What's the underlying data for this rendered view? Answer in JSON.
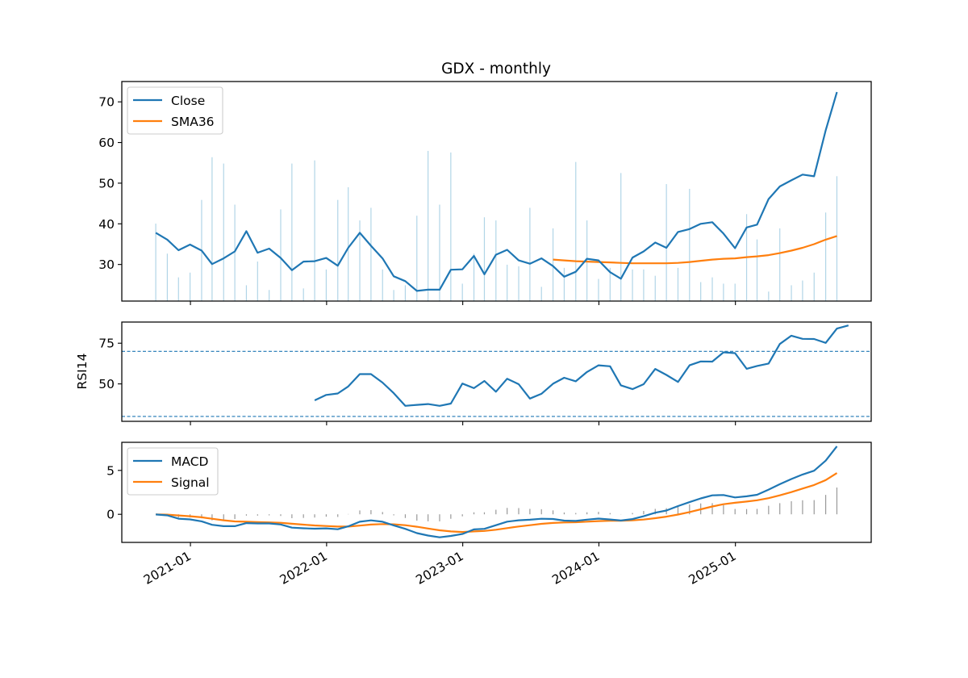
{
  "title": "GDX - monthly",
  "colors": {
    "close": "#1f77b4",
    "sma": "#ff7f0e",
    "volume": "#9ecae1",
    "macd_hist": "#999999",
    "ref_line": "#1f77b4"
  },
  "chart_data": [
    {
      "panel": "price",
      "type": "line",
      "title": "GDX - monthly",
      "xlabel": "",
      "ylabel": "",
      "xlim": [
        "2020-07-01",
        "2025-12-31"
      ],
      "ylim": [
        21,
        75
      ],
      "yticks": [
        30,
        40,
        50,
        60,
        70
      ],
      "legend": "top-left",
      "grid": false,
      "x": [
        "2020-09-30",
        "2020-10-31",
        "2020-11-30",
        "2020-12-31",
        "2021-01-31",
        "2021-02-28",
        "2021-03-31",
        "2021-04-30",
        "2021-05-31",
        "2021-06-30",
        "2021-07-31",
        "2021-08-31",
        "2021-09-30",
        "2021-10-31",
        "2021-11-30",
        "2021-12-31",
        "2022-01-31",
        "2022-02-28",
        "2022-03-31",
        "2022-04-30",
        "2022-05-31",
        "2022-06-30",
        "2022-07-31",
        "2022-08-31",
        "2022-09-30",
        "2022-10-31",
        "2022-11-30",
        "2022-12-31",
        "2023-01-31",
        "2023-02-28",
        "2023-03-31",
        "2023-04-30",
        "2023-05-31",
        "2023-06-30",
        "2023-07-31",
        "2023-08-31",
        "2023-09-30",
        "2023-10-31",
        "2023-11-30",
        "2023-12-31",
        "2024-01-31",
        "2024-02-29",
        "2024-03-31",
        "2024-04-30",
        "2024-05-31",
        "2024-06-30",
        "2024-07-31",
        "2024-08-31",
        "2024-09-30",
        "2024-10-31",
        "2024-11-30",
        "2024-12-31",
        "2025-01-31",
        "2025-02-28",
        "2025-03-31",
        "2025-04-30",
        "2025-05-31",
        "2025-06-30",
        "2025-07-31",
        "2025-08-31",
        "2025-09-30",
        "2025-10-31"
      ],
      "series": [
        {
          "name": "Close",
          "values": [
            37.8,
            36.1,
            33.5,
            34.9,
            33.4,
            30.1,
            31.5,
            33.2,
            38.2,
            32.9,
            33.9,
            31.6,
            28.6,
            30.7,
            30.8,
            31.6,
            29.7,
            34.1,
            37.8,
            34.6,
            31.5,
            27.1,
            25.9,
            23.5,
            23.8,
            23.8,
            28.7,
            28.8,
            32.1,
            27.6,
            32.4,
            33.6,
            31.0,
            30.2,
            31.5,
            29.6,
            27.0,
            28.2,
            31.4,
            31.0,
            28.1,
            26.5,
            31.7,
            33.2,
            35.4,
            34.1,
            38.0,
            38.7,
            40.0,
            40.4,
            37.6,
            34.0,
            39.1,
            39.8,
            46.1,
            49.2,
            50.7,
            52.1,
            51.7,
            63.0,
            72.4,
            null
          ]
        },
        {
          "name": "SMA36",
          "values": [
            null,
            null,
            null,
            null,
            null,
            null,
            null,
            null,
            null,
            null,
            null,
            null,
            null,
            null,
            null,
            null,
            null,
            null,
            null,
            null,
            null,
            null,
            null,
            null,
            null,
            null,
            null,
            null,
            null,
            null,
            null,
            null,
            null,
            null,
            null,
            31.2,
            31.0,
            30.8,
            30.7,
            30.6,
            30.5,
            30.4,
            30.3,
            30.3,
            30.3,
            30.3,
            30.4,
            30.6,
            30.9,
            31.2,
            31.4,
            31.5,
            31.8,
            32.0,
            32.3,
            32.8,
            33.4,
            34.1,
            35.0,
            36.1,
            37.0,
            null
          ]
        }
      ],
      "bars": {
        "name": "Volume",
        "values": [
          0.49,
          0.3,
          0.15,
          0.18,
          0.64,
          0.91,
          0.87,
          0.61,
          0.1,
          0.25,
          0.07,
          0.58,
          0.87,
          0.08,
          0.89,
          0.2,
          0.64,
          0.72,
          0.51,
          0.59,
          0.2,
          0.07,
          0.1,
          0.54,
          0.95,
          0.61,
          0.94,
          0.11,
          0.3,
          0.53,
          0.51,
          0.23,
          0.22,
          0.59,
          0.09,
          0.46,
          0.21,
          0.88,
          0.51,
          0.14,
          0.21,
          0.81,
          0.2,
          0.2,
          0.16,
          0.74,
          0.21,
          0.71,
          0.12,
          0.15,
          0.11,
          0.11,
          0.55,
          0.39,
          0.06,
          0.46,
          0.1,
          0.13,
          0.18,
          0.56,
          0.79,
          0.0
        ]
      }
    },
    {
      "panel": "rsi",
      "type": "line",
      "xlabel": "",
      "ylabel": "RSI14",
      "ylim": [
        27,
        88
      ],
      "yticks": [
        50,
        75
      ],
      "reference_lines": [
        70,
        30
      ],
      "grid": false,
      "series": [
        {
          "name": "RSI14",
          "values": [
            null,
            null,
            null,
            null,
            null,
            null,
            null,
            null,
            null,
            null,
            null,
            null,
            null,
            null,
            39.9,
            43.2,
            44.1,
            48.4,
            56.0,
            56.0,
            50.8,
            44.3,
            36.5,
            37.1,
            37.6,
            36.5,
            37.9,
            50.2,
            47.4,
            51.8,
            45.2,
            53.2,
            49.8,
            41.0,
            43.9,
            50.1,
            53.8,
            51.6,
            57.3,
            61.4,
            60.8,
            49.1,
            46.8,
            49.8,
            59.2,
            55.5,
            51.2,
            61.4,
            63.8,
            63.7,
            69.4,
            68.9,
            59.3,
            61.0,
            62.5,
            74.5,
            79.6,
            77.7,
            77.6,
            75.2,
            84.0,
            85.9
          ]
        }
      ]
    },
    {
      "panel": "macd",
      "type": "line",
      "xlabel": "",
      "ylabel": "",
      "ylim": [
        -3.2,
        8.2
      ],
      "yticks": [
        0,
        5
      ],
      "legend": "top-left",
      "grid": false,
      "xtick_labels": [
        "2021-01",
        "2022-01",
        "2023-01",
        "2024-01",
        "2025-01"
      ],
      "series": [
        {
          "name": "MACD",
          "values": [
            -0.02,
            -0.12,
            -0.5,
            -0.58,
            -0.8,
            -1.2,
            -1.35,
            -1.35,
            -1.0,
            -1.04,
            -1.04,
            -1.16,
            -1.52,
            -1.59,
            -1.64,
            -1.6,
            -1.7,
            -1.37,
            -0.85,
            -0.69,
            -0.85,
            -1.26,
            -1.66,
            -2.14,
            -2.42,
            -2.62,
            -2.46,
            -2.24,
            -1.72,
            -1.66,
            -1.24,
            -0.84,
            -0.68,
            -0.62,
            -0.51,
            -0.53,
            -0.72,
            -0.75,
            -0.61,
            -0.49,
            -0.59,
            -0.71,
            -0.54,
            -0.22,
            0.18,
            0.43,
            0.94,
            1.39,
            1.81,
            2.16,
            2.2,
            1.92,
            2.05,
            2.22,
            2.81,
            3.43,
            4.02,
            4.53,
            4.96,
            6.11,
            7.75,
            null
          ]
        },
        {
          "name": "Signal",
          "values": [
            -0.02,
            -0.04,
            -0.13,
            -0.22,
            -0.34,
            -0.51,
            -0.68,
            -0.81,
            -0.85,
            -0.89,
            -0.92,
            -0.97,
            -1.08,
            -1.18,
            -1.27,
            -1.33,
            -1.4,
            -1.4,
            -1.29,
            -1.17,
            -1.11,
            -1.14,
            -1.24,
            -1.42,
            -1.62,
            -1.82,
            -1.95,
            -2.01,
            -1.95,
            -1.89,
            -1.76,
            -1.57,
            -1.39,
            -1.24,
            -1.09,
            -0.98,
            -0.93,
            -0.9,
            -0.84,
            -0.77,
            -0.73,
            -0.73,
            -0.69,
            -0.6,
            -0.44,
            -0.27,
            -0.03,
            0.26,
            0.57,
            0.89,
            1.15,
            1.31,
            1.45,
            1.6,
            1.84,
            2.16,
            2.53,
            2.93,
            3.34,
            3.9,
            4.7,
            null
          ]
        }
      ],
      "bars": {
        "name": "Histogram",
        "values": [
          0.0,
          -0.08,
          -0.37,
          -0.36,
          -0.46,
          -0.69,
          -0.67,
          -0.54,
          -0.15,
          -0.15,
          -0.12,
          -0.19,
          -0.44,
          -0.41,
          -0.37,
          -0.27,
          -0.3,
          0.03,
          0.44,
          0.48,
          0.26,
          -0.12,
          -0.42,
          -0.72,
          -0.8,
          -0.8,
          -0.51,
          -0.23,
          0.23,
          0.23,
          0.52,
          0.73,
          0.71,
          0.62,
          0.58,
          0.45,
          0.21,
          0.15,
          0.23,
          0.28,
          0.14,
          0.02,
          0.15,
          0.38,
          0.62,
          0.7,
          0.97,
          1.13,
          1.24,
          1.27,
          1.05,
          0.61,
          0.6,
          0.62,
          0.97,
          1.27,
          1.49,
          1.6,
          1.62,
          2.21,
          3.05,
          null
        ]
      }
    }
  ]
}
